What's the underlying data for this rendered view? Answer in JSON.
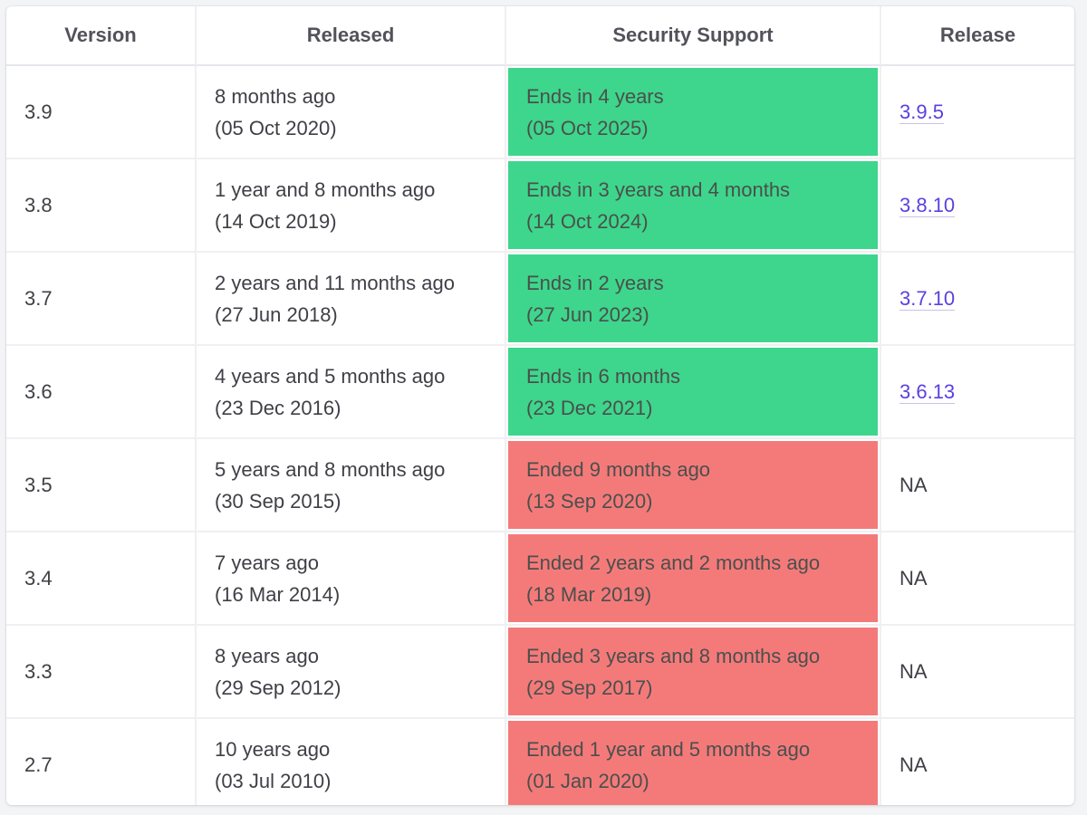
{
  "headers": {
    "version": "Version",
    "released": "Released",
    "security": "Security Support",
    "release": "Release"
  },
  "colors": {
    "supported": "#3dd68c",
    "ended": "#f47a7a",
    "link": "#5b3fe0"
  },
  "rows": [
    {
      "version": "3.9",
      "released_ago": "8 months ago",
      "released_date": "(05 Oct 2020)",
      "security_status": "supported",
      "security_text": "Ends in 4 years",
      "security_date": "(05 Oct 2025)",
      "release": "3.9.5",
      "release_is_link": true
    },
    {
      "version": "3.8",
      "released_ago": "1 year and 8 months ago",
      "released_date": "(14 Oct 2019)",
      "security_status": "supported",
      "security_text": "Ends in 3 years and 4 months",
      "security_date": "(14 Oct 2024)",
      "release": "3.8.10",
      "release_is_link": true
    },
    {
      "version": "3.7",
      "released_ago": "2 years and 11 months ago",
      "released_date": "(27 Jun 2018)",
      "security_status": "supported",
      "security_text": "Ends in 2 years",
      "security_date": "(27 Jun 2023)",
      "release": "3.7.10",
      "release_is_link": true
    },
    {
      "version": "3.6",
      "released_ago": "4 years and 5 months ago",
      "released_date": "(23 Dec 2016)",
      "security_status": "supported",
      "security_text": "Ends in 6 months",
      "security_date": "(23 Dec 2021)",
      "release": "3.6.13",
      "release_is_link": true
    },
    {
      "version": "3.5",
      "released_ago": "5 years and 8 months ago",
      "released_date": "(30 Sep 2015)",
      "security_status": "ended",
      "security_text": "Ended 9 months ago",
      "security_date": "(13 Sep 2020)",
      "release": "NA",
      "release_is_link": false
    },
    {
      "version": "3.4",
      "released_ago": "7 years ago",
      "released_date": "(16 Mar 2014)",
      "security_status": "ended",
      "security_text": "Ended 2 years and 2 months ago",
      "security_date": "(18 Mar 2019)",
      "release": "NA",
      "release_is_link": false
    },
    {
      "version": "3.3",
      "released_ago": "8 years ago",
      "released_date": "(29 Sep 2012)",
      "security_status": "ended",
      "security_text": "Ended 3 years and 8 months ago",
      "security_date": "(29 Sep 2017)",
      "release": "NA",
      "release_is_link": false
    },
    {
      "version": "2.7",
      "released_ago": "10 years ago",
      "released_date": "(03 Jul 2010)",
      "security_status": "ended",
      "security_text": "Ended 1 year and 5 months ago",
      "security_date": "(01 Jan 2020)",
      "release": "NA",
      "release_is_link": false
    }
  ]
}
